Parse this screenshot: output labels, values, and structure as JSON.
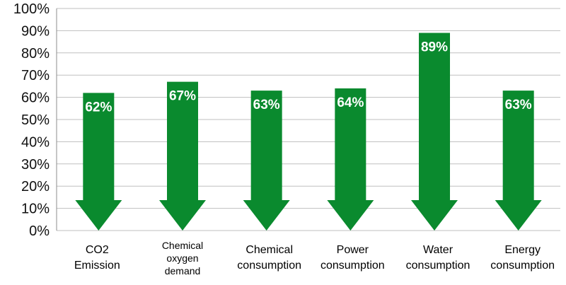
{
  "chart_data": {
    "type": "bar",
    "categories": [
      [
        "CO2",
        "Emission"
      ],
      [
        "Chemical",
        "oxygen",
        "demand"
      ],
      [
        "Chemical",
        "consumption"
      ],
      [
        "Power",
        "consumption"
      ],
      [
        "Water",
        "consumption"
      ],
      [
        "Energy",
        "consumption"
      ]
    ],
    "values": [
      62,
      67,
      63,
      64,
      89,
      63
    ],
    "data_labels": [
      "62%",
      "67%",
      "63%",
      "64%",
      "89%",
      "63%"
    ],
    "ylim": [
      0,
      100
    ],
    "yticks": [
      "0%",
      "10%",
      "20%",
      "30%",
      "40%",
      "50%",
      "60%",
      "70%",
      "80%",
      "90%",
      "100%"
    ],
    "title": "",
    "xlabel": "",
    "ylabel": "",
    "grid": true,
    "legend": "none",
    "bar_shape": "down-arrow",
    "colors": {
      "bar": "#0a8a2e",
      "grid": "#bfbfbf",
      "label": "#ffffff"
    }
  }
}
